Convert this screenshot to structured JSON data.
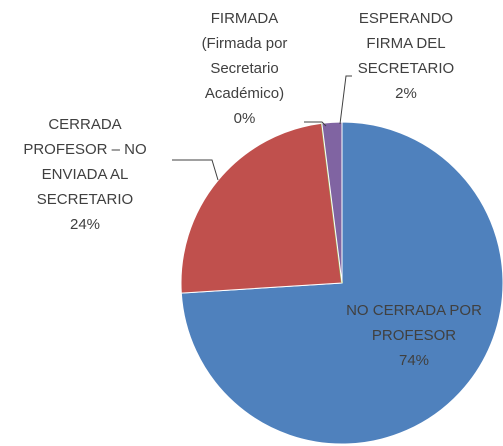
{
  "chart_data": {
    "type": "pie",
    "categories": [
      "NO CERRADA POR PROFESOR",
      "CERRADA PROFESOR – NO ENVIADA AL SECRETARIO",
      "FIRMADA (Firmada por Secretario Académico)",
      "ESPERANDO FIRMA DEL SECRETARIO"
    ],
    "values": [
      74,
      24,
      0,
      2
    ],
    "value_labels": [
      "74%",
      "24%",
      "0%",
      "2%"
    ],
    "colors": [
      "#4f81bd",
      "#c0504d",
      "#9bbb59",
      "#8064a2"
    ]
  }
}
